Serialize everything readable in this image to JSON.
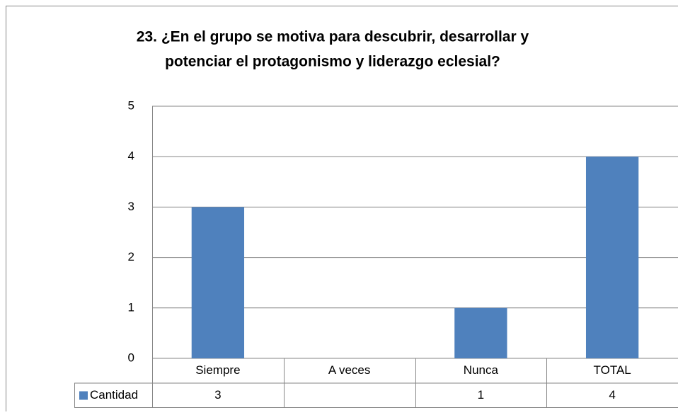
{
  "chart_data": {
    "type": "bar",
    "title": [
      "23. ¿En el grupo se motiva para descubrir, desarrollar y",
      "potenciar el protagonismo y liderazgo eclesial?"
    ],
    "categories": [
      "Siempre",
      "A veces",
      "Nunca",
      "TOTAL"
    ],
    "series": [
      {
        "name": "Cantidad",
        "color": "#4f81bd",
        "values": [
          3,
          null,
          1,
          4
        ]
      }
    ],
    "ylim": [
      0,
      5
    ],
    "yticks": [
      0,
      1,
      2,
      3,
      4,
      5
    ],
    "grid": true
  }
}
